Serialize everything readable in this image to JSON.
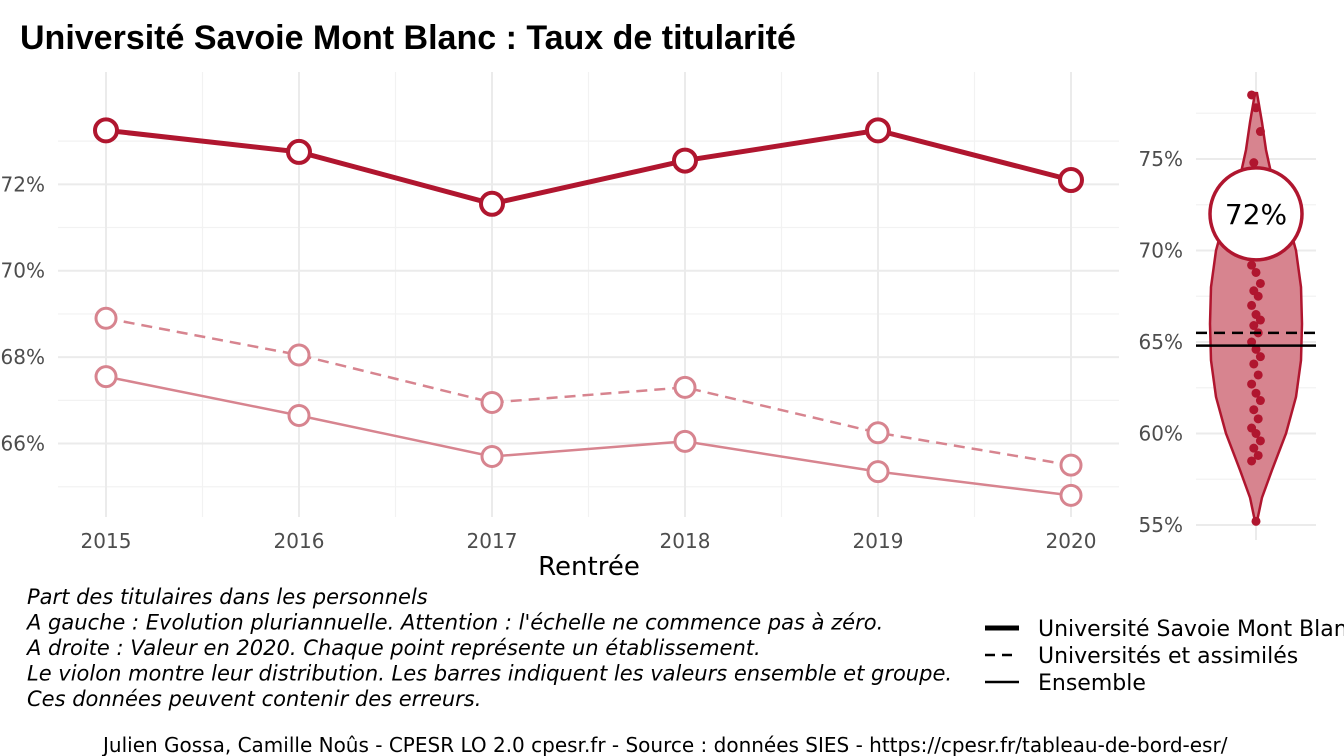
{
  "title": "Université Savoie Mont Blanc  :  Taux de titularité",
  "chart_data": [
    {
      "type": "line",
      "x": [
        "2015",
        "2016",
        "2017",
        "2018",
        "2019",
        "2020"
      ],
      "xlabel": "Rentrée",
      "ylabel": "",
      "ylim": [
        64.3,
        74.6
      ],
      "yticks": [
        "66%",
        "68%",
        "70%",
        "72%"
      ],
      "ytick_values": [
        66,
        68,
        70,
        72
      ],
      "grid": true,
      "series": [
        {
          "name": "Université Savoie Mont Blanc",
          "style": "solid-thick",
          "color": "#b0162f",
          "values": [
            73.25,
            72.75,
            71.55,
            72.55,
            73.25,
            72.1
          ]
        },
        {
          "name": "Universités et assimilés",
          "style": "dashed",
          "color": "#d7848f",
          "values": [
            68.9,
            68.05,
            66.95,
            67.3,
            66.25,
            65.5
          ]
        },
        {
          "name": "Ensemble",
          "style": "solid-thin",
          "color": "#d7848f",
          "values": [
            67.55,
            66.65,
            65.7,
            66.05,
            65.35,
            64.8
          ]
        }
      ]
    },
    {
      "type": "violin",
      "ylim": [
        54,
        80
      ],
      "yticks": [
        "55%",
        "60%",
        "65%",
        "70%",
        "75%"
      ],
      "ytick_values": [
        55,
        60,
        65,
        70,
        75
      ],
      "highlight_value": 72,
      "highlight_label": "72%",
      "group_value": 65.5,
      "overall_value": 64.8,
      "color": "#b0162f",
      "fill": "#d7848f",
      "points": [
        78.5,
        77.8,
        76.5,
        74.8,
        73.5,
        72.8,
        71.6,
        70.8,
        70.2,
        69.8,
        69.2,
        68.8,
        68.2,
        67.8,
        67.5,
        67.0,
        66.5,
        66.2,
        65.9,
        65.5,
        65.0,
        64.6,
        64.2,
        63.8,
        63.2,
        62.7,
        62.2,
        61.8,
        61.3,
        60.8,
        60.3,
        60.0,
        59.6,
        59.2,
        58.8,
        58.5,
        55.2
      ]
    }
  ],
  "caption_lines": [
    "Part des titulaires dans les personnels",
    "A gauche : Evolution pluriannuelle. Attention : l'échelle ne commence pas à zéro.",
    "A droite : Valeur en 2020. Chaque point représente un établissement.",
    "Le violon montre leur distribution. Les barres indiquent les valeurs ensemble et groupe.",
    "Ces données peuvent contenir des erreurs."
  ],
  "legend": [
    {
      "label": "Université Savoie Mont Blanc",
      "style": "thick"
    },
    {
      "label": "Universités et assimilés",
      "style": "dashed"
    },
    {
      "label": "Ensemble",
      "style": "thin"
    }
  ],
  "source": "Julien Gossa, Camille Noûs - CPESR LO 2.0 cpesr.fr - Source : données SIES - https://cpesr.fr/tableau-de-bord-esr/"
}
